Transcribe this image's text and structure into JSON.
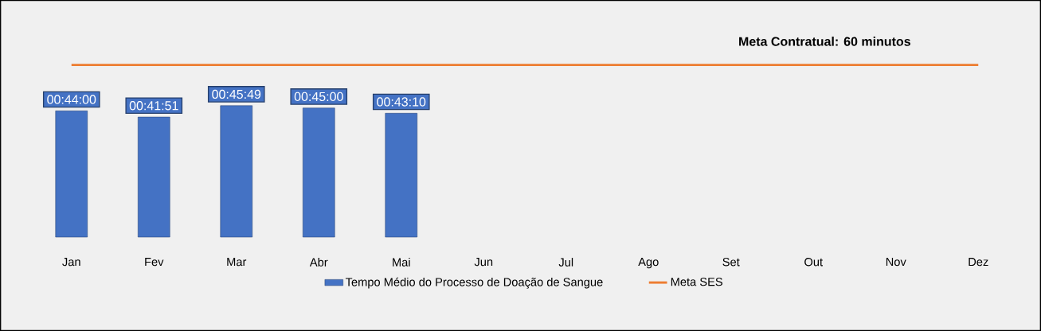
{
  "chart_data": {
    "type": "bar",
    "categories": [
      "Jan",
      "Fev",
      "Mar",
      "Abr",
      "Mai",
      "Jun",
      "Jul",
      "Ago",
      "Set",
      "Out",
      "Nov",
      "Dez"
    ],
    "series": [
      {
        "name": "Tempo Médio do Processo de Doação de Sangue",
        "color": "#4472c4",
        "values": [
          44,
          41.85,
          45.82,
          45,
          43.17,
          null,
          null,
          null,
          null,
          null,
          null,
          null
        ],
        "value_labels": [
          "00:44:00",
          "00:41:51",
          "00:45:49",
          "00:45:00",
          "00:43:10",
          null,
          null,
          null,
          null,
          null,
          null,
          null
        ]
      },
      {
        "name": "Meta SES",
        "type": "line",
        "color": "#ed7d31",
        "values": [
          60,
          60,
          60,
          60,
          60,
          60,
          60,
          60,
          60,
          60,
          60,
          60
        ]
      }
    ],
    "annotations": [
      "Meta Contratual: 60 minutos"
    ],
    "legend": "bottom"
  }
}
